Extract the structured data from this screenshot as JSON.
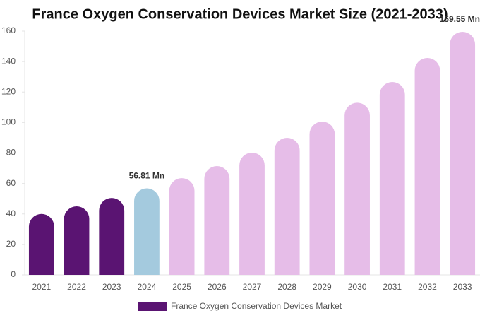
{
  "chart_data": {
    "type": "bar",
    "title": "France Oxygen Conservation Devices Market Size (2021-2033)",
    "categories": [
      "2021",
      "2022",
      "2023",
      "2024",
      "2025",
      "2026",
      "2027",
      "2028",
      "2029",
      "2030",
      "2031",
      "2032",
      "2033"
    ],
    "series": [
      {
        "name": "France Oxygen Conservation Devices Market",
        "color": "#5a1472",
        "values": [
          40,
          45,
          50.5,
          56.81,
          63.5,
          71.4,
          80.2,
          90,
          100.6,
          113,
          126.6,
          142.4,
          159.55
        ],
        "value_labels": [
          null,
          null,
          null,
          "56.81 Mn",
          null,
          null,
          null,
          null,
          null,
          null,
          null,
          null,
          "159.55 Mn"
        ],
        "colors": [
          "#5a1472",
          "#5a1472",
          "#5a1472",
          "#a4cade",
          "#e6bde8",
          "#e6bde8",
          "#e6bde8",
          "#e6bde8",
          "#e6bde8",
          "#e6bde8",
          "#e6bde8",
          "#e6bde8",
          "#e6bde8"
        ]
      }
    ],
    "ylim": [
      0,
      160
    ],
    "yticks": [
      0,
      20,
      40,
      60,
      80,
      100,
      120,
      140,
      160
    ],
    "grid": false
  }
}
